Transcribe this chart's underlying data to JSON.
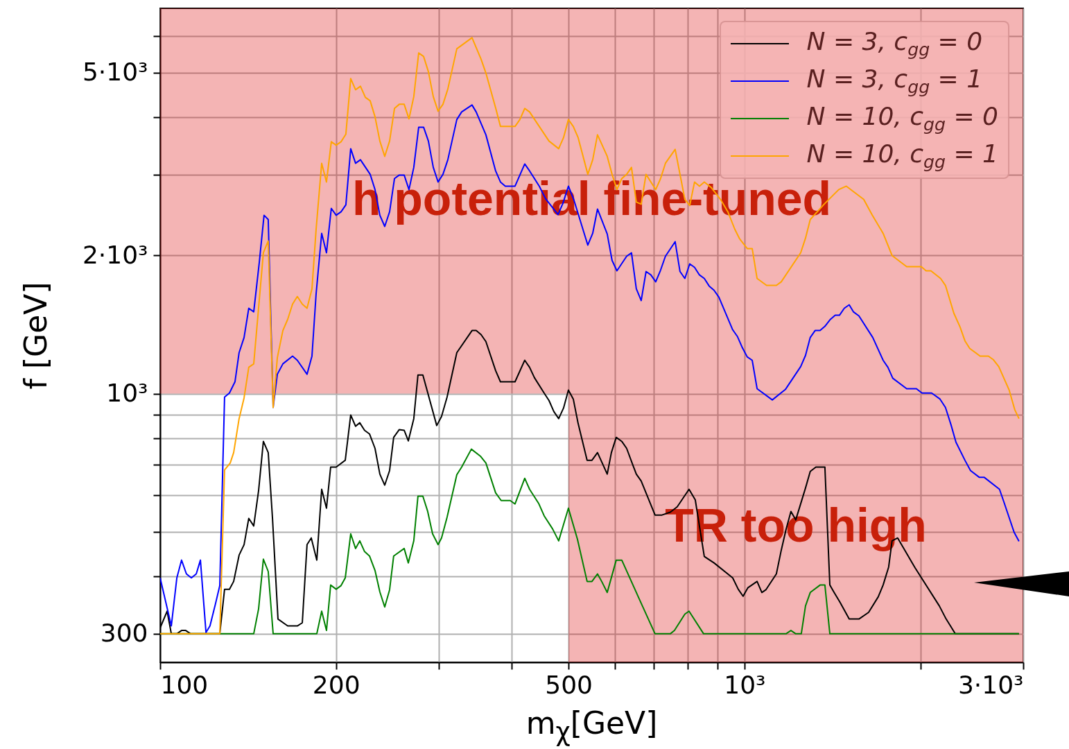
{
  "chart_data": {
    "type": "line",
    "xlabel": "m$_{χ}$[GeV]",
    "ylabel": "f [GeV]",
    "log": "xy",
    "grid": true,
    "legend": "top right",
    "xlim": [
      100,
      3000
    ],
    "ylim": [
      260,
      6900
    ],
    "xticks": [
      100,
      200,
      {
        "value": 300,
        "label": null
      },
      {
        "value": 400,
        "label": null
      },
      500,
      {
        "value": 600,
        "label": null
      },
      {
        "value": 700,
        "label": null
      },
      {
        "value": 800,
        "label": null
      },
      {
        "value": 900,
        "label": null
      },
      {
        "value": 1000,
        "label": "10³"
      },
      {
        "value": 2000,
        "label": null
      },
      {
        "value": 3000,
        "label": "3·10³"
      }
    ],
    "yticks": [
      300,
      {
        "value": 400,
        "label": null
      },
      {
        "value": 500,
        "label": null
      },
      {
        "value": 600,
        "label": null
      },
      {
        "value": 700,
        "label": null
      },
      {
        "value": 800,
        "label": null
      },
      {
        "value": 900,
        "label": null
      },
      {
        "value": 1000,
        "label": "10³"
      },
      {
        "value": 2000,
        "label": "2·10³"
      },
      {
        "value": 3000,
        "label": null
      },
      {
        "value": 4000,
        "label": null
      },
      {
        "value": 5000,
        "label": "5·10³"
      },
      {
        "value": 6000,
        "label": null
      }
    ],
    "bands": [
      {
        "axis": "y",
        "from": 1000,
        "to": 6900,
        "label": "h potential fine-tuned",
        "color": "#da0505"
      },
      {
        "axis": "x",
        "from": 500,
        "to": 3000,
        "label": "TR too high",
        "color": "#da0505"
      }
    ],
    "series": [
      {
        "name": "N = 3, c$_{gg}$ = 0",
        "color": "#000000",
        "x": [
          100,
          102.8,
          104.5,
          106.8,
          108.8,
          110.6,
          112.8,
          126.5,
          128.9,
          131.4,
          133.6,
          136.5,
          139.2,
          141.8,
          144.6,
          147.4,
          150.2,
          153.1,
          155.7,
          159.1,
          165.3,
          171.7,
          175.1,
          178.4,
          181.4,
          185.4,
          189,
          192.6,
          195.8,
          200.1,
          207.4,
          211.9,
          216,
          219.6,
          223.8,
          228.2,
          233.2,
          237.7,
          242.3,
          247,
          251,
          256.6,
          261.6,
          265.9,
          271.7,
          276.2,
          281.6,
          297.4,
          303.1,
          309.8,
          321.9,
          341.8,
          347.4,
          354.2,
          361,
          375.1,
          382.3,
          404.9,
          420.7,
          428.8,
          437.1,
          454.1,
          462.9,
          471.8,
          480.9,
          490.2,
          499.7,
          509.4,
          519.2,
          537.9,
          548.3,
          560.4,
          582.3,
          591.9,
          603.3,
          616.7,
          628.6,
          644.2,
          653,
          665.7,
          703,
          722.5,
          746.6,
          767.3,
          803.8,
          823.8,
          853.6,
          886.9,
          954.7,
          975.8,
          994.6,
          1014,
          1051,
          1071,
          1088,
          1134,
          1156,
          1178,
          1201,
          1224,
          1272,
          1296,
          1325,
          1373,
          1400,
          1422,
          1458,
          1511,
          1570,
          1631,
          1694,
          1727,
          1765,
          1789,
          1829,
          1958,
          2155,
          2214,
          2295,
          2950
        ],
        "values": [
          309,
          336,
          300,
          300,
          305,
          305,
          300,
          300,
          375,
          375,
          390,
          445,
          469,
          535,
          515,
          615,
          787,
          744,
          535,
          323,
          312,
          312,
          317,
          469,
          485,
          434,
          619,
          563,
          692,
          692,
          716,
          898,
          849,
          864,
          832,
          817,
          760,
          668,
          632,
          680,
          803,
          835,
          832,
          789,
          882,
          1098,
          1098,
          852,
          892,
          983,
          1228,
          1372,
          1372,
          1344,
          1298,
          1122,
          1061,
          1061,
          1182,
          1141,
          1083,
          1003,
          966,
          914,
          882,
          930,
          1018,
          973,
          861,
          716,
          716,
          744,
          668,
          744,
          803,
          787,
          760,
          699,
          668,
          645,
          544,
          544,
          552,
          567,
          619,
          587,
          442,
          428,
          397,
          375,
          362,
          378,
          390,
          369,
          374,
          405,
          456,
          506,
          554,
          531,
          623,
          677,
          692,
          692,
          383,
          370,
          351,
          323,
          323,
          334,
          361,
          383,
          419,
          478,
          485,
          418,
          345,
          323,
          300,
          300
        ]
      },
      {
        "name": "N = 3, c$_{gg}$ = 1",
        "color": "#0000ff",
        "x": [
          100,
          104.5,
          106.8,
          108.8,
          110.9,
          113.1,
          115.3,
          117.2,
          119.8,
          121.7,
          124.4,
          126.5,
          128.9,
          131.4,
          134.3,
          136.5,
          139.2,
          141.8,
          144.6,
          147.8,
          150.6,
          153.1,
          156.1,
          158.7,
          162.2,
          168.5,
          171.7,
          178.4,
          181.9,
          184.9,
          189,
          192.6,
          196.3,
          200.1,
          204,
          207.9,
          211.9,
          216,
          220.2,
          228.8,
          233.2,
          237.7,
          242.3,
          247,
          251.8,
          256.6,
          261.6,
          266.6,
          271.7,
          277,
          282.4,
          287.8,
          293.4,
          299,
          304.8,
          310.7,
          321.9,
          328.1,
          341.8,
          347.4,
          361,
          375.1,
          382.3,
          389.7,
          404.9,
          420.7,
          428.8,
          445.5,
          456.6,
          479.6,
          488.9,
          499.7,
          510.7,
          539.4,
          549.9,
          560.4,
          571.2,
          582.3,
          593.5,
          605,
          628.6,
          640.7,
          653,
          665.7,
          678.5,
          691.6,
          704.9,
          718.5,
          732.4,
          761,
          775.7,
          790.7,
          806,
          821.5,
          837.4,
          853.6,
          870.1,
          886.9,
          904,
          954.7,
          973.2,
          992,
          1011,
          1031,
          1051,
          1116,
          1175,
          1248,
          1272,
          1296,
          1321,
          1347,
          1373,
          1403,
          1430,
          1454,
          1482,
          1511,
          1536,
          1570,
          1658,
          1727,
          1760,
          1794,
          1895,
          1969,
          2013,
          2091,
          2161,
          2208,
          2257,
          2301,
          2384,
          2437,
          2524,
          2573,
          2732,
          2777,
          2894,
          2950
        ],
        "values": [
          397,
          312,
          397,
          434,
          405,
          397,
          405,
          434,
          302,
          312,
          349,
          382,
          983,
          1003,
          1061,
          1228,
          1325,
          1534,
          1507,
          1930,
          2445,
          2394,
          933,
          1102,
          1161,
          1207,
          1182,
          1102,
          1207,
          1650,
          2233,
          2026,
          2531,
          2445,
          2488,
          2576,
          3414,
          3173,
          3229,
          3002,
          2781,
          2445,
          2312,
          2488,
          2939,
          2991,
          2991,
          2781,
          3108,
          3802,
          3802,
          3547,
          3108,
          2889,
          3002,
          3229,
          3951,
          4105,
          4250,
          4105,
          3660,
          3054,
          2889,
          2829,
          2829,
          3162,
          3054,
          2829,
          2658,
          2453,
          2594,
          2829,
          2639,
          2105,
          2233,
          2522,
          2369,
          2226,
          1950,
          1851,
          1991,
          2026,
          1691,
          1594,
          1844,
          1813,
          1751,
          1857,
          1991,
          2142,
          1844,
          1781,
          1916,
          1883,
          1813,
          1781,
          1715,
          1679,
          1622,
          1377,
          1330,
          1258,
          1202,
          1182,
          1025,
          969,
          1021,
          1145,
          1211,
          1325,
          1372,
          1372,
          1401,
          1451,
          1481,
          1481,
          1534,
          1561,
          1507,
          1476,
          1325,
          1182,
          1141,
          1080,
          1025,
          1025,
          1003,
          1003,
          973,
          933,
          855,
          784,
          716,
          680,
          657,
          657,
          619,
          583,
          499,
          477
        ]
      },
      {
        "name": "N = 10, c$_{gg}$ = 0",
        "color": "#008000",
        "x": [
          100,
          144.6,
          147.4,
          150.2,
          153.1,
          156.1,
          185.4,
          189,
          192.6,
          195.8,
          200.1,
          204,
          207.4,
          211.9,
          216,
          219.6,
          223.8,
          228.2,
          233.2,
          237.7,
          242.3,
          247,
          251,
          261.6,
          265.9,
          271.7,
          276.2,
          281.6,
          287,
          292.6,
          299,
          303.1,
          309.8,
          321.9,
          328.1,
          340.9,
          353.2,
          361,
          375.1,
          383.4,
          397.3,
          404.9,
          420.7,
          428.8,
          444.3,
          454.1,
          469.3,
          480.9,
          499.7,
          517.8,
          537.9,
          548.3,
          560.4,
          569.7,
          582.3,
          603.3,
          616.7,
          662,
          703,
          746.6,
          759,
          790.7,
          803.8,
          851.3,
          1178,
          1201,
          1224,
          1251,
          1272,
          1296,
          1347,
          1373,
          1400,
          2950
        ],
        "values": [
          300,
          300,
          340,
          436,
          410,
          300,
          300,
          336,
          305,
          383,
          375,
          382,
          397,
          495,
          460,
          478,
          453,
          443,
          412,
          370,
          343,
          374,
          443,
          460,
          428,
          478,
          598,
          598,
          554,
          495,
          469,
          485,
          538,
          666,
          692,
          757,
          731,
          706,
          608,
          585,
          585,
          575,
          654,
          619,
          577,
          542,
          508,
          478,
          563,
          482,
          390,
          390,
          405,
          390,
          369,
          434,
          434,
          355,
          300,
          300,
          305,
          331,
          336,
          300,
          300,
          305,
          300,
          300,
          345,
          369,
          383,
          383,
          300,
          300
        ]
      },
      {
        "name": "N = 10, c$_{gg}$ = 1",
        "color": "#ffa500",
        "x": [
          100,
          126.5,
          128.9,
          131.8,
          133.6,
          136.5,
          139.2,
          141.8,
          144.6,
          150.2,
          153.1,
          156.1,
          158.7,
          162.2,
          165.3,
          168.5,
          171.7,
          175.1,
          178.4,
          181.9,
          184.9,
          189,
          192.6,
          196.3,
          200.1,
          204,
          207.9,
          211.9,
          216,
          220.2,
          224.5,
          228.8,
          233.2,
          237.7,
          242.3,
          247,
          251.8,
          256.6,
          261.6,
          266.6,
          271.7,
          277,
          282.4,
          287.8,
          293.4,
          299,
          304.8,
          310.7,
          321.9,
          341.8,
          354.2,
          361,
          375.1,
          382.3,
          404.9,
          412.7,
          420.7,
          428.8,
          445.5,
          462.9,
          480.9,
          490.2,
          499.7,
          509.4,
          519.2,
          539.4,
          549.9,
          560.4,
          582.3,
          593.5,
          605,
          616.7,
          628.6,
          640.7,
          653,
          665.7,
          678.5,
          704.9,
          718.5,
          732.4,
          761,
          775.7,
          790.7,
          806,
          821.5,
          837.4,
          853.6,
          877.2,
          911.5,
          936.7,
          962.6,
          981.2,
          1011,
          1031,
          1051,
          1091,
          1134,
          1156,
          1248,
          1272,
          1296,
          1369,
          1450,
          1494,
          1600,
          1653,
          1727,
          1789,
          1895,
          2007,
          2046,
          2085,
          2166,
          2208,
          2282,
          2339,
          2384,
          2430,
          2531,
          2615,
          2665,
          2724,
          2838,
          2901,
          2950
        ],
        "values": [
          300,
          300,
          682,
          706,
          744,
          882,
          979,
          1141,
          1161,
          2026,
          2150,
          933,
          1198,
          1372,
          1451,
          1566,
          1627,
          1566,
          1534,
          1691,
          2280,
          3173,
          2889,
          3535,
          3474,
          3535,
          3672,
          4851,
          4588,
          4668,
          4416,
          4340,
          4006,
          3547,
          3285,
          3547,
          4177,
          4265,
          4265,
          3965,
          4431,
          5517,
          5421,
          5022,
          4431,
          4119,
          4265,
          4604,
          5633,
          5955,
          5347,
          4988,
          4191,
          3816,
          3816,
          3951,
          4177,
          4105,
          3816,
          3547,
          3414,
          3609,
          3951,
          3816,
          3609,
          3002,
          3229,
          3660,
          3285,
          3002,
          2781,
          2939,
          3002,
          3108,
          2612,
          2585,
          3002,
          2781,
          2939,
          3173,
          3402,
          3002,
          2648,
          2567,
          2889,
          2829,
          2889,
          2810,
          2639,
          2488,
          2280,
          2172,
          2069,
          2069,
          1781,
          1720,
          1720,
          1751,
          2026,
          2180,
          2394,
          2585,
          2781,
          2829,
          2648,
          2453,
          2233,
          1998,
          1890,
          1890,
          1851,
          1851,
          1781,
          1720,
          1497,
          1396,
          1303,
          1254,
          1207,
          1207,
          1186,
          1145,
          1018,
          923,
          882
        ]
      }
    ]
  }
}
